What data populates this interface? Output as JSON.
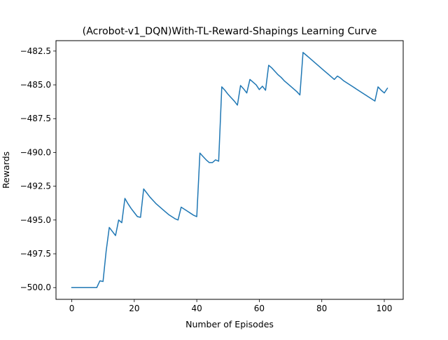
{
  "chart_data": {
    "type": "line",
    "title": "(Acrobot-v1_DQN)With-TL-Reward-Shapings Learning Curve",
    "xlabel": "Number of Episodes",
    "ylabel": "Rewards",
    "xlim": [
      -5.05,
      106.05
    ],
    "ylim": [
      -500.87,
      -481.73
    ],
    "xticks": [
      0,
      20,
      40,
      60,
      80,
      100
    ],
    "xtick_labels": [
      "0",
      "20",
      "40",
      "60",
      "80",
      "100"
    ],
    "yticks": [
      -500.0,
      -497.5,
      -495.0,
      -492.5,
      -490.0,
      -487.5,
      -485.0,
      -482.5
    ],
    "ytick_labels": [
      "−500.0",
      "−497.5",
      "−495.0",
      "−492.5",
      "−490.0",
      "−487.5",
      "−485.0",
      "−482.5"
    ],
    "grid": false,
    "series": [
      {
        "color": "#1f77b4",
        "x": [
          0,
          1,
          2,
          3,
          4,
          5,
          6,
          7,
          8,
          9,
          10,
          11,
          12,
          13,
          14,
          15,
          16,
          17,
          18,
          19,
          20,
          21,
          22,
          23,
          24,
          25,
          26,
          27,
          28,
          29,
          30,
          31,
          32,
          33,
          34,
          35,
          36,
          37,
          38,
          39,
          40,
          41,
          42,
          43,
          44,
          45,
          46,
          47,
          48,
          49,
          50,
          51,
          52,
          53,
          54,
          55,
          56,
          57,
          58,
          59,
          60,
          61,
          62,
          63,
          64,
          65,
          66,
          67,
          68,
          69,
          70,
          71,
          72,
          73,
          74,
          75,
          76,
          77,
          78,
          79,
          80,
          81,
          82,
          83,
          84,
          85,
          86,
          87,
          88,
          89,
          90,
          91,
          92,
          93,
          94,
          95,
          96,
          97,
          98,
          99,
          100,
          101
        ],
        "y": [
          -500.0,
          -500.0,
          -500.0,
          -500.0,
          -500.0,
          -500.0,
          -500.0,
          -500.0,
          -500.0,
          -499.5,
          -499.55,
          -497.3,
          -495.55,
          -495.85,
          -496.15,
          -495.0,
          -495.2,
          -493.4,
          -493.8,
          -494.15,
          -494.45,
          -494.75,
          -494.8,
          -492.7,
          -493.0,
          -493.3,
          -493.55,
          -493.8,
          -494.0,
          -494.2,
          -494.4,
          -494.6,
          -494.75,
          -494.9,
          -495.0,
          -494.05,
          -494.2,
          -494.35,
          -494.5,
          -494.65,
          -494.75,
          -490.05,
          -490.3,
          -490.55,
          -490.75,
          -490.75,
          -490.55,
          -490.65,
          -485.15,
          -485.4,
          -485.7,
          -485.95,
          -486.2,
          -486.5,
          -485.05,
          -485.3,
          -485.6,
          -484.6,
          -484.8,
          -485.0,
          -485.35,
          -485.1,
          -485.4,
          -483.55,
          -483.75,
          -484.0,
          -484.25,
          -484.45,
          -484.7,
          -484.9,
          -485.1,
          -485.3,
          -485.5,
          -485.75,
          -482.6,
          -482.8,
          -483.0,
          -483.2,
          -483.4,
          -483.6,
          -483.8,
          -484.0,
          -484.2,
          -484.4,
          -484.6,
          -484.35,
          -484.5,
          -484.7,
          -484.85,
          -485.0,
          -485.15,
          -485.3,
          -485.45,
          -485.6,
          -485.75,
          -485.9,
          -486.05,
          -486.2,
          -485.15,
          -485.4,
          -485.6,
          -485.25
        ]
      }
    ]
  }
}
